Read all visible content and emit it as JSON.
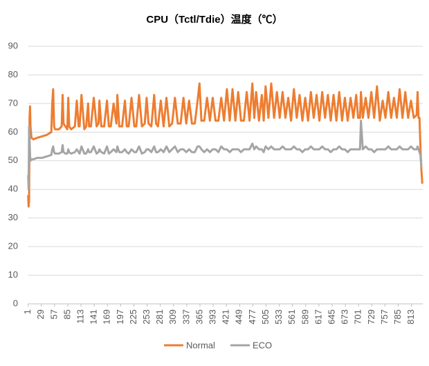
{
  "chart_data": {
    "type": "line",
    "title": "CPU（Tctl/Tdie）温度（℃）",
    "x": [
      1,
      2,
      3,
      4,
      5,
      6,
      8,
      12,
      20,
      30,
      40,
      50,
      52,
      54,
      56,
      58,
      60,
      62,
      66,
      72,
      74,
      76,
      80,
      84,
      86,
      88,
      92,
      100,
      104,
      108,
      110,
      114,
      120,
      124,
      128,
      130,
      134,
      140,
      146,
      150,
      152,
      156,
      162,
      168,
      172,
      176,
      182,
      188,
      190,
      194,
      200,
      206,
      210,
      214,
      220,
      226,
      230,
      236,
      242,
      248,
      252,
      256,
      262,
      268,
      272,
      276,
      282,
      288,
      294,
      300,
      306,
      312,
      318,
      324,
      330,
      336,
      342,
      348,
      354,
      360,
      364,
      368,
      374,
      380,
      386,
      392,
      398,
      404,
      410,
      416,
      422,
      428,
      434,
      440,
      446,
      452,
      458,
      464,
      470,
      476,
      480,
      484,
      490,
      496,
      500,
      504,
      510,
      516,
      522,
      528,
      534,
      540,
      546,
      552,
      558,
      564,
      570,
      576,
      582,
      588,
      594,
      600,
      606,
      612,
      618,
      624,
      630,
      636,
      642,
      648,
      654,
      660,
      666,
      672,
      678,
      684,
      690,
      696,
      700,
      704,
      706,
      710,
      716,
      722,
      728,
      734,
      740,
      746,
      752,
      758,
      764,
      770,
      776,
      782,
      788,
      794,
      800,
      806,
      812,
      818,
      824,
      826,
      828,
      830,
      832,
      834,
      836
    ],
    "series": [
      {
        "name": "Normal",
        "color": "#ed7d31",
        "values": [
          38,
          34,
          36,
          65,
          69,
          62,
          58,
          57.5,
          58,
          58.5,
          59,
          60,
          70,
          75,
          62,
          61,
          61,
          61,
          61,
          62,
          73,
          63,
          62,
          61,
          72,
          62,
          61,
          62,
          71,
          62,
          62,
          73,
          61,
          62,
          70,
          62,
          62,
          72,
          62,
          63,
          71,
          62,
          62,
          71,
          62,
          62,
          70,
          63,
          73,
          62,
          62,
          71,
          62,
          62,
          72,
          62,
          62,
          73,
          62,
          63,
          72,
          63,
          62,
          73,
          63,
          62,
          71,
          62,
          72,
          62,
          63,
          72,
          63,
          63,
          72,
          63,
          71,
          63,
          63,
          71,
          77,
          64,
          64,
          72,
          64,
          72,
          64,
          64,
          72,
          64,
          75,
          64,
          75,
          64,
          74,
          64,
          64,
          74,
          64,
          77,
          65,
          74,
          64,
          73,
          64,
          76,
          65,
          77,
          65,
          74,
          65,
          74,
          65,
          72,
          64,
          75,
          65,
          73,
          64,
          72,
          64,
          74,
          65,
          73,
          64,
          74,
          65,
          73,
          64,
          73,
          64,
          74,
          64,
          72,
          64,
          72,
          65,
          73,
          65,
          65,
          74,
          65,
          72,
          65,
          74,
          65,
          76,
          64,
          71,
          65,
          74,
          65,
          72,
          65,
          75,
          65,
          74,
          65,
          71,
          65,
          66,
          74,
          65,
          65,
          55,
          47,
          42
        ]
      },
      {
        "name": "ECO",
        "color": "#a5a5a5",
        "values": [
          45,
          40,
          62,
          58,
          52,
          50,
          50.5,
          50.5,
          51,
          51,
          51.5,
          52,
          54,
          55,
          53,
          52.5,
          52.5,
          52.5,
          52.5,
          53,
          55.5,
          53,
          52.5,
          52.5,
          54,
          53,
          52.5,
          53,
          54,
          53,
          52.5,
          55,
          52.5,
          52.5,
          54,
          53,
          53,
          55,
          52.5,
          53,
          54,
          53,
          52.5,
          55,
          52.5,
          53,
          54,
          53,
          55,
          53,
          53,
          54,
          53,
          52.5,
          54,
          53,
          53,
          55,
          52.5,
          53,
          54,
          54,
          53,
          55,
          53,
          53,
          54,
          53,
          55,
          53,
          54,
          55,
          53,
          54,
          54,
          53,
          54,
          53,
          53,
          55,
          55,
          54,
          53,
          54,
          53,
          54,
          54,
          53,
          55,
          54,
          54,
          53,
          54,
          54,
          54,
          53,
          54,
          54,
          54,
          56,
          54,
          55,
          54,
          54,
          53,
          55,
          54,
          55,
          54,
          54,
          54,
          55,
          54,
          54,
          54,
          55,
          54,
          54,
          53,
          54,
          54,
          55,
          54,
          54,
          54,
          55,
          54,
          54,
          53,
          54,
          54,
          55,
          54,
          54,
          53,
          54,
          54,
          54,
          54,
          54,
          64,
          54,
          55,
          54,
          54,
          53,
          54,
          54,
          54,
          54,
          55,
          54,
          54,
          54,
          55,
          54,
          54,
          54,
          55,
          54,
          54,
          55,
          54,
          53,
          52,
          48,
          48
        ]
      }
    ],
    "xlim": [
      0,
      837
    ],
    "xticks": [
      1,
      29,
      57,
      85,
      113,
      141,
      169,
      197,
      225,
      253,
      281,
      309,
      337,
      365,
      393,
      421,
      449,
      477,
      505,
      533,
      561,
      589,
      617,
      645,
      673,
      701,
      729,
      757,
      785,
      813
    ],
    "ylim": [
      0,
      90
    ],
    "yticks": [
      0,
      10,
      20,
      30,
      40,
      50,
      60,
      70,
      80,
      90
    ],
    "grid": true
  }
}
